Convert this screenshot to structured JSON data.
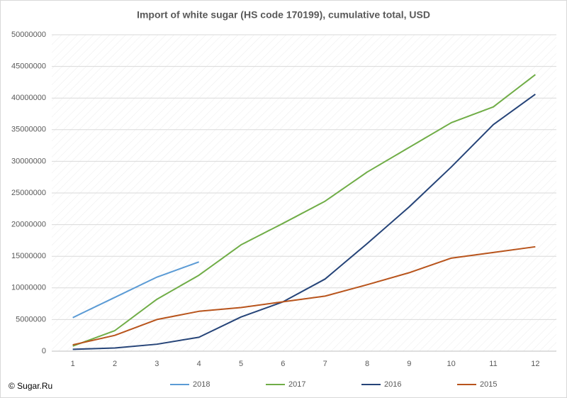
{
  "chart_data": {
    "type": "line",
    "title": "Import of white sugar (HS code 170199), cumulative total, USD",
    "credit": "© Sugar.Ru",
    "categories": [
      "1",
      "2",
      "3",
      "4",
      "5",
      "6",
      "7",
      "8",
      "9",
      "10",
      "11",
      "12"
    ],
    "series": [
      {
        "name": "2018",
        "color": "#5b9bd5",
        "values": [
          5300000,
          8500000,
          11700000,
          14100000,
          null,
          null,
          null,
          null,
          null,
          null,
          null,
          null
        ]
      },
      {
        "name": "2017",
        "color": "#70ad47",
        "values": [
          800000,
          3250000,
          8200000,
          12000000,
          16800000,
          20200000,
          23700000,
          28300000,
          32200000,
          36100000,
          38600000,
          43700000
        ]
      },
      {
        "name": "2016",
        "color": "#264478",
        "values": [
          300000,
          500000,
          1100000,
          2200000,
          5400000,
          7800000,
          11400000,
          17000000,
          22800000,
          29100000,
          35800000,
          40600000
        ]
      },
      {
        "name": "2015",
        "color": "#b8541c",
        "values": [
          1000000,
          2500000,
          5000000,
          6300000,
          6900000,
          7800000,
          8700000,
          10500000,
          12400000,
          14700000,
          15600000,
          16500000
        ]
      }
    ],
    "ylim": [
      0,
      50000000
    ],
    "yticks": [
      0,
      5000000,
      10000000,
      15000000,
      20000000,
      25000000,
      30000000,
      35000000,
      40000000,
      45000000,
      50000000
    ],
    "grid": true,
    "legend": "bottom"
  }
}
